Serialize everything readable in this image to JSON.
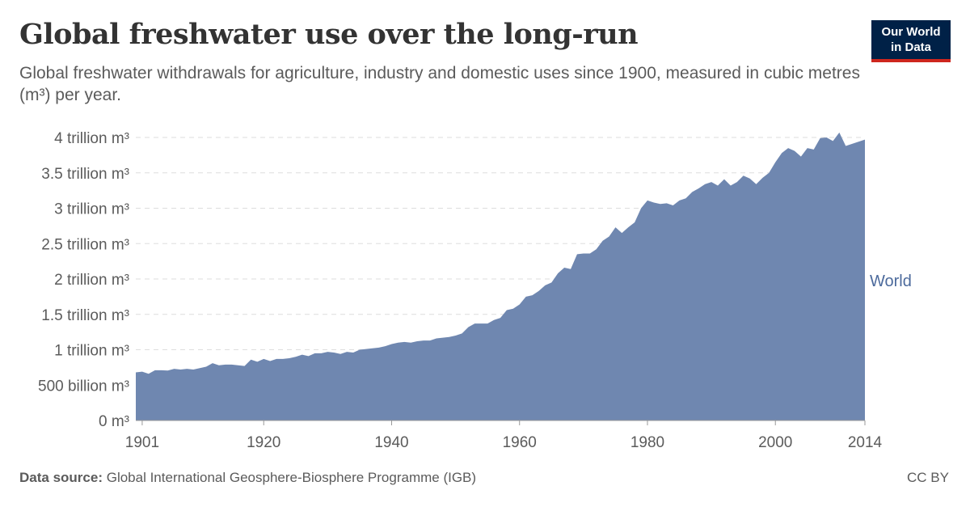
{
  "header": {
    "title": "Global freshwater use over the long-run",
    "subtitle": "Global freshwater withdrawals for agriculture, industry and domestic uses since 1900, measured in cubic metres (m³) per year."
  },
  "logo": {
    "line1": "Our World",
    "line2": "in Data"
  },
  "footer": {
    "source_label": "Data source:",
    "source_text": "Global International Geosphere-Biosphere Programme (IGB)",
    "license": "CC BY"
  },
  "colors": {
    "area": "#6f87b0",
    "label": "#4c6a9c",
    "grid": "#dddddd"
  },
  "chart_data": {
    "type": "area",
    "title": "Global freshwater use over the long-run",
    "xlabel": "",
    "ylabel": "",
    "xlim": [
      1900,
      2014
    ],
    "ylim": [
      0,
      4000000000000
    ],
    "grid": "horizontal dashed",
    "yticks": [
      {
        "value": 0,
        "label": "0 m³"
      },
      {
        "value": 500000000000,
        "label": "500 billion m³"
      },
      {
        "value": 1000000000000,
        "label": "1 trillion m³"
      },
      {
        "value": 1500000000000,
        "label": "1.5 trillion m³"
      },
      {
        "value": 2000000000000,
        "label": "2 trillion m³"
      },
      {
        "value": 2500000000000,
        "label": "2.5 trillion m³"
      },
      {
        "value": 3000000000000,
        "label": "3 trillion m³"
      },
      {
        "value": 3500000000000,
        "label": "3.5 trillion m³"
      },
      {
        "value": 4000000000000,
        "label": "4 trillion m³"
      }
    ],
    "xticks": [
      {
        "value": 1901,
        "label": "1901"
      },
      {
        "value": 1920,
        "label": "1920"
      },
      {
        "value": 1940,
        "label": "1940"
      },
      {
        "value": 1960,
        "label": "1960"
      },
      {
        "value": 1980,
        "label": "1980"
      },
      {
        "value": 2000,
        "label": "2000"
      },
      {
        "value": 2014,
        "label": "2014"
      }
    ],
    "series": [
      {
        "name": "World",
        "x": [
          1900,
          1901,
          1902,
          1903,
          1904,
          1905,
          1906,
          1907,
          1908,
          1909,
          1910,
          1911,
          1912,
          1913,
          1914,
          1915,
          1916,
          1917,
          1918,
          1919,
          1920,
          1921,
          1922,
          1923,
          1924,
          1925,
          1926,
          1927,
          1928,
          1929,
          1930,
          1931,
          1932,
          1933,
          1934,
          1935,
          1936,
          1937,
          1938,
          1939,
          1940,
          1941,
          1942,
          1943,
          1944,
          1945,
          1946,
          1947,
          1948,
          1949,
          1950,
          1951,
          1952,
          1953,
          1954,
          1955,
          1956,
          1957,
          1958,
          1959,
          1960,
          1961,
          1962,
          1963,
          1964,
          1965,
          1966,
          1967,
          1968,
          1969,
          1970,
          1971,
          1972,
          1973,
          1974,
          1975,
          1976,
          1977,
          1978,
          1979,
          1980,
          1981,
          1982,
          1983,
          1984,
          1985,
          1986,
          1987,
          1988,
          1989,
          1990,
          1991,
          1992,
          1993,
          1994,
          1995,
          1996,
          1997,
          1998,
          1999,
          2000,
          2001,
          2002,
          2003,
          2004,
          2005,
          2006,
          2007,
          2008,
          2009,
          2010,
          2011,
          2012,
          2013,
          2014
        ],
        "values": [
          680000000000,
          690000000000,
          660000000000,
          710000000000,
          710000000000,
          705000000000,
          730000000000,
          720000000000,
          730000000000,
          720000000000,
          740000000000,
          760000000000,
          810000000000,
          780000000000,
          790000000000,
          790000000000,
          780000000000,
          770000000000,
          860000000000,
          830000000000,
          870000000000,
          840000000000,
          870000000000,
          870000000000,
          880000000000,
          900000000000,
          930000000000,
          910000000000,
          950000000000,
          950000000000,
          970000000000,
          960000000000,
          940000000000,
          970000000000,
          960000000000,
          1000000000000,
          1010000000000,
          1020000000000,
          1030000000000,
          1050000000000,
          1080000000000,
          1100000000000,
          1110000000000,
          1100000000000,
          1120000000000,
          1130000000000,
          1130000000000,
          1160000000000,
          1170000000000,
          1180000000000,
          1200000000000,
          1230000000000,
          1320000000000,
          1370000000000,
          1370000000000,
          1370000000000,
          1420000000000,
          1450000000000,
          1560000000000,
          1580000000000,
          1640000000000,
          1750000000000,
          1770000000000,
          1830000000000,
          1910000000000,
          1950000000000,
          2080000000000,
          2160000000000,
          2140000000000,
          2350000000000,
          2360000000000,
          2360000000000,
          2420000000000,
          2540000000000,
          2600000000000,
          2730000000000,
          2650000000000,
          2730000000000,
          2800000000000,
          3000000000000,
          3110000000000,
          3080000000000,
          3060000000000,
          3070000000000,
          3040000000000,
          3110000000000,
          3140000000000,
          3230000000000,
          3280000000000,
          3340000000000,
          3370000000000,
          3320000000000,
          3410000000000,
          3320000000000,
          3370000000000,
          3460000000000,
          3420000000000,
          3340000000000,
          3430000000000,
          3500000000000,
          3650000000000,
          3780000000000,
          3850000000000,
          3810000000000,
          3730000000000,
          3850000000000,
          3830000000000,
          3990000000000,
          4000000000000,
          3950000000000,
          4070000000000,
          3880000000000,
          3910000000000,
          3940000000000,
          3970000000000
        ]
      }
    ]
  }
}
